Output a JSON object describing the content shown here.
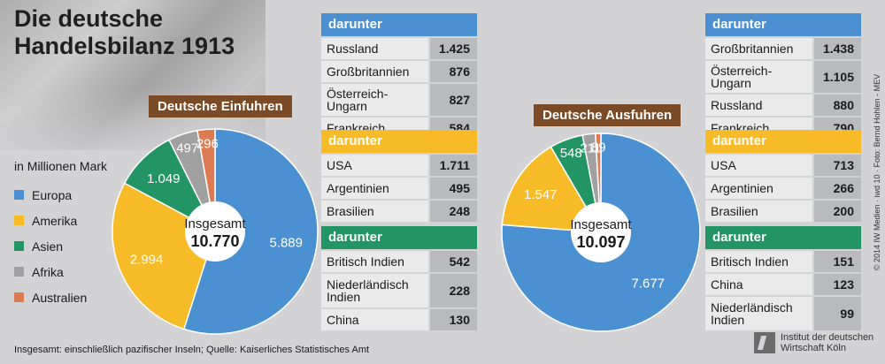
{
  "title_line1": "Die deutsche",
  "title_line2": "Handelsbilanz 1913",
  "unit": "in Millionen Mark",
  "colors": {
    "Europa": "#4b90d0",
    "Amerika": "#f8bb28",
    "Asien": "#239565",
    "Afrika": "#a0a0a0",
    "Australien": "#dc7b52",
    "header_blue": "#4b90d0",
    "header_yellow": "#f8bb28",
    "header_green": "#239565",
    "caption_brown": "#7b4a27"
  },
  "legend": [
    "Europa",
    "Amerika",
    "Asien",
    "Afrika",
    "Australien"
  ],
  "chart_data": [
    {
      "type": "pie",
      "title": "Deutsche Einfuhren",
      "categories": [
        "Europa",
        "Amerika",
        "Asien",
        "Afrika",
        "Australien"
      ],
      "values": [
        5889,
        2994,
        1049,
        497,
        296
      ],
      "labels": [
        "5.889",
        "2.994",
        "1.049",
        "497",
        "296"
      ],
      "total_label": "Insgesamt",
      "total": "10.770"
    },
    {
      "type": "pie",
      "title": "Deutsche Ausfuhren",
      "categories": [
        "Europa",
        "Amerika",
        "Asien",
        "Afrika",
        "Australien"
      ],
      "values": [
        7677,
        1547,
        548,
        211,
        89
      ],
      "labels": [
        "7.677",
        "1.547",
        "548",
        "211",
        "89"
      ],
      "total_label": "Insgesamt",
      "total": "10.097"
    }
  ],
  "import_panels": [
    {
      "header": "darunter",
      "rows": [
        {
          "name": "Russland",
          "value": "1.425"
        },
        {
          "name": "Großbritannien",
          "value": "876"
        },
        {
          "name": "Österreich-Ungarn",
          "value": "827"
        },
        {
          "name": "Frankreich",
          "value": "584"
        }
      ]
    },
    {
      "header": "darunter",
      "rows": [
        {
          "name": "USA",
          "value": "1.711"
        },
        {
          "name": "Argentinien",
          "value": "495"
        },
        {
          "name": "Brasilien",
          "value": "248"
        }
      ]
    },
    {
      "header": "darunter",
      "rows": [
        {
          "name": "Britisch Indien",
          "value": "542"
        },
        {
          "name": "Niederländisch Indien",
          "value": "228"
        },
        {
          "name": "China",
          "value": "130"
        }
      ]
    }
  ],
  "export_panels": [
    {
      "header": "darunter",
      "rows": [
        {
          "name": "Großbritannien",
          "value": "1.438"
        },
        {
          "name": "Österreich-Ungarn",
          "value": "1.105"
        },
        {
          "name": "Russland",
          "value": "880"
        },
        {
          "name": "Frankreich",
          "value": "790"
        }
      ]
    },
    {
      "header": "darunter",
      "rows": [
        {
          "name": "USA",
          "value": "713"
        },
        {
          "name": "Argentinien",
          "value": "266"
        },
        {
          "name": "Brasilien",
          "value": "200"
        }
      ]
    },
    {
      "header": "darunter",
      "rows": [
        {
          "name": "Britisch Indien",
          "value": "151"
        },
        {
          "name": "China",
          "value": "123"
        },
        {
          "name": "Niederländisch Indien",
          "value": "99"
        }
      ]
    }
  ],
  "source": "Insgesamt: einschließlich pazifischer Inseln; Quelle: Kaiserliches Statistisches Amt",
  "copyright": "© 2014 IW Medien · iwd 10 · Foto: Bernd Hohlen - MEV",
  "logo_line1": "Institut der deutschen",
  "logo_line2": "Wirtschaft Köln"
}
